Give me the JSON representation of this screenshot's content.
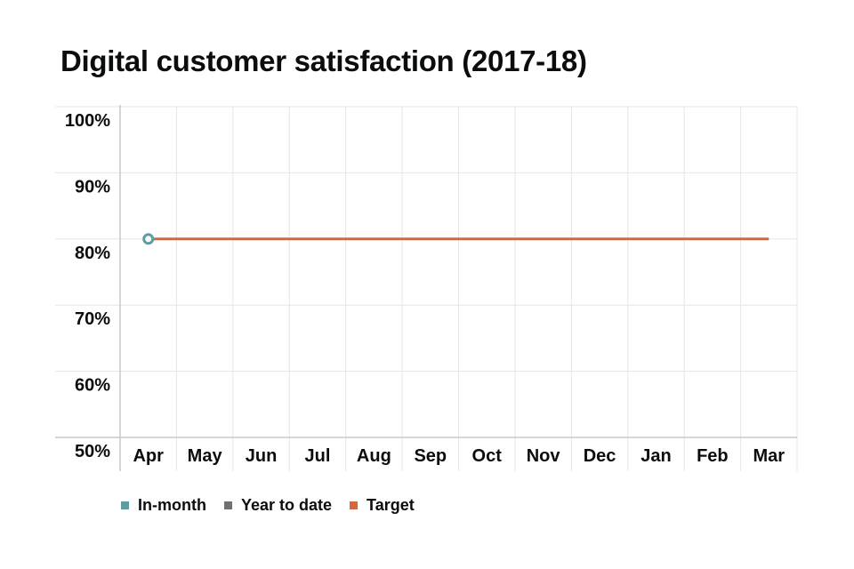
{
  "chart_data": {
    "type": "line",
    "title": "Digital customer satisfaction (2017-18)",
    "categories": [
      "Apr",
      "May",
      "Jun",
      "Jul",
      "Aug",
      "Sep",
      "Oct",
      "Nov",
      "Dec",
      "Jan",
      "Feb",
      "Mar"
    ],
    "ylim": [
      50,
      100
    ],
    "yticks": [
      {
        "value": 50,
        "label": "50%"
      },
      {
        "value": 60,
        "label": "60%"
      },
      {
        "value": 70,
        "label": "70%"
      },
      {
        "value": 80,
        "label": "80%"
      },
      {
        "value": 90,
        "label": "90%"
      },
      {
        "value": 100,
        "label": "100%"
      }
    ],
    "series": [
      {
        "name": "In-month",
        "color": "#5f9ea0",
        "values": [
          80,
          null,
          null,
          null,
          null,
          null,
          null,
          null,
          null,
          null,
          null,
          null
        ]
      },
      {
        "name": "Year to date",
        "color": "#6f7174",
        "values": [
          null,
          null,
          null,
          null,
          null,
          null,
          null,
          null,
          null,
          null,
          null,
          null
        ]
      },
      {
        "name": "Target",
        "color": "#d4683c",
        "values": [
          80,
          80,
          80,
          80,
          80,
          80,
          80,
          80,
          80,
          80,
          80,
          80
        ]
      }
    ],
    "grid": true,
    "legend_position": "bottom-left"
  }
}
